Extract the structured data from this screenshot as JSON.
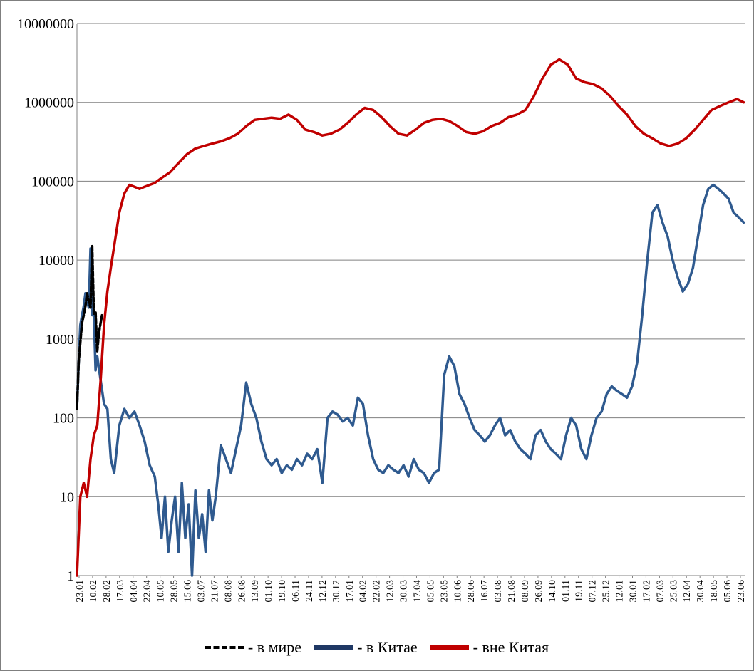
{
  "chart_data": {
    "type": "line",
    "yscale": "log",
    "ylim": [
      1,
      10000000
    ],
    "y_ticks": [
      "1",
      "10",
      "100",
      "1000",
      "10000",
      "100000",
      "1000000",
      "10000000"
    ],
    "x_ticks": [
      "23.01",
      "10.02",
      "28.02",
      "17.03",
      "04.04",
      "22.04",
      "10.05",
      "28.05",
      "15.06",
      "03.07",
      "21.07",
      "08.08",
      "26.08",
      "13.09",
      "01.10",
      "19.10",
      "06.11",
      "24.11",
      "12.12",
      "30.12",
      "17.01",
      "04.02",
      "22.02",
      "12.03",
      "30.03",
      "17.04",
      "05.05",
      "23.05",
      "10.06",
      "28.06",
      "16.07",
      "03.08",
      "21.08",
      "08.09",
      "26.09",
      "14.10",
      "01.11",
      "19.11",
      "07.12",
      "25.12",
      "12.01",
      "30.01",
      "17.02",
      "07.03",
      "25.03",
      "12.04",
      "30.04",
      "18.05",
      "05.06",
      "23.06"
    ],
    "grid": true,
    "legend_position": "bottom",
    "series": [
      {
        "name": "- в мире",
        "color": "#000000",
        "style": "dashed",
        "points": [
          [
            0,
            130
          ],
          [
            1,
            500
          ],
          [
            2,
            900
          ],
          [
            3,
            1600
          ],
          [
            4,
            2000
          ],
          [
            5,
            2600
          ],
          [
            6,
            3800
          ],
          [
            7,
            3000
          ],
          [
            8,
            2500
          ],
          [
            9,
            15000
          ],
          [
            10,
            2100
          ],
          [
            11,
            2200
          ],
          [
            12,
            700
          ],
          [
            13,
            1200
          ],
          [
            14,
            1600
          ],
          [
            15,
            2100
          ]
        ]
      },
      {
        "name": "-  в Китае",
        "color": "#2f5a8f",
        "style": "solid",
        "points": [
          [
            0,
            130
          ],
          [
            1,
            500
          ],
          [
            2,
            1500
          ],
          [
            3,
            2000
          ],
          [
            4,
            2600
          ],
          [
            5,
            3800
          ],
          [
            6,
            3000
          ],
          [
            7,
            2500
          ],
          [
            8,
            14000
          ],
          [
            9,
            2000
          ],
          [
            10,
            2000
          ],
          [
            11,
            400
          ],
          [
            12,
            600
          ],
          [
            14,
            300
          ],
          [
            16,
            150
          ],
          [
            18,
            130
          ],
          [
            20,
            30
          ],
          [
            22,
            20
          ],
          [
            25,
            80
          ],
          [
            28,
            130
          ],
          [
            31,
            100
          ],
          [
            34,
            120
          ],
          [
            37,
            80
          ],
          [
            40,
            50
          ],
          [
            43,
            25
          ],
          [
            46,
            18
          ],
          [
            48,
            8
          ],
          [
            50,
            3
          ],
          [
            52,
            10
          ],
          [
            54,
            2
          ],
          [
            56,
            5
          ],
          [
            58,
            10
          ],
          [
            60,
            2
          ],
          [
            62,
            15
          ],
          [
            64,
            3
          ],
          [
            66,
            8
          ],
          [
            68,
            1
          ],
          [
            70,
            12
          ],
          [
            72,
            3
          ],
          [
            74,
            6
          ],
          [
            76,
            2
          ],
          [
            78,
            12
          ],
          [
            80,
            5
          ],
          [
            82,
            10
          ],
          [
            85,
            45
          ],
          [
            88,
            30
          ],
          [
            91,
            20
          ],
          [
            94,
            40
          ],
          [
            97,
            80
          ],
          [
            100,
            280
          ],
          [
            103,
            150
          ],
          [
            106,
            100
          ],
          [
            109,
            50
          ],
          [
            112,
            30
          ],
          [
            115,
            25
          ],
          [
            118,
            30
          ],
          [
            121,
            20
          ],
          [
            124,
            25
          ],
          [
            127,
            22
          ],
          [
            130,
            30
          ],
          [
            133,
            25
          ],
          [
            136,
            35
          ],
          [
            139,
            30
          ],
          [
            142,
            40
          ],
          [
            145,
            15
          ],
          [
            148,
            100
          ],
          [
            151,
            120
          ],
          [
            154,
            110
          ],
          [
            157,
            90
          ],
          [
            160,
            100
          ],
          [
            163,
            80
          ],
          [
            166,
            180
          ],
          [
            169,
            150
          ],
          [
            172,
            60
          ],
          [
            175,
            30
          ],
          [
            178,
            22
          ],
          [
            181,
            20
          ],
          [
            184,
            25
          ],
          [
            187,
            22
          ],
          [
            190,
            20
          ],
          [
            193,
            25
          ],
          [
            196,
            18
          ],
          [
            199,
            30
          ],
          [
            202,
            22
          ],
          [
            205,
            20
          ],
          [
            208,
            15
          ],
          [
            211,
            20
          ],
          [
            214,
            22
          ],
          [
            217,
            350
          ],
          [
            220,
            600
          ],
          [
            223,
            450
          ],
          [
            226,
            200
          ],
          [
            229,
            150
          ],
          [
            232,
            100
          ],
          [
            235,
            70
          ],
          [
            238,
            60
          ],
          [
            241,
            50
          ],
          [
            244,
            60
          ],
          [
            247,
            80
          ],
          [
            250,
            100
          ],
          [
            253,
            60
          ],
          [
            256,
            70
          ],
          [
            259,
            50
          ],
          [
            262,
            40
          ],
          [
            265,
            35
          ],
          [
            268,
            30
          ],
          [
            271,
            60
          ],
          [
            274,
            70
          ],
          [
            277,
            50
          ],
          [
            280,
            40
          ],
          [
            283,
            35
          ],
          [
            286,
            30
          ],
          [
            289,
            60
          ],
          [
            292,
            100
          ],
          [
            295,
            80
          ],
          [
            298,
            40
          ],
          [
            301,
            30
          ],
          [
            304,
            60
          ],
          [
            307,
            100
          ],
          [
            310,
            120
          ],
          [
            313,
            200
          ],
          [
            316,
            250
          ],
          [
            319,
            220
          ],
          [
            322,
            200
          ],
          [
            325,
            180
          ],
          [
            328,
            250
          ],
          [
            331,
            500
          ],
          [
            334,
            2000
          ],
          [
            337,
            10000
          ],
          [
            340,
            40000
          ],
          [
            343,
            50000
          ],
          [
            346,
            30000
          ],
          [
            349,
            20000
          ],
          [
            352,
            10000
          ],
          [
            355,
            6000
          ],
          [
            358,
            4000
          ],
          [
            361,
            5000
          ],
          [
            364,
            8000
          ],
          [
            367,
            20000
          ],
          [
            370,
            50000
          ],
          [
            373,
            80000
          ],
          [
            376,
            90000
          ],
          [
            379,
            80000
          ],
          [
            382,
            70000
          ],
          [
            385,
            60000
          ],
          [
            388,
            40000
          ],
          [
            391,
            35000
          ],
          [
            394,
            30000
          ]
        ]
      },
      {
        "name": "- вне Китая",
        "color": "#c00000",
        "style": "solid",
        "points": [
          [
            0,
            1
          ],
          [
            2,
            10
          ],
          [
            4,
            15
          ],
          [
            6,
            10
          ],
          [
            8,
            30
          ],
          [
            10,
            60
          ],
          [
            12,
            80
          ],
          [
            14,
            300
          ],
          [
            16,
            1500
          ],
          [
            18,
            4000
          ],
          [
            20,
            8000
          ],
          [
            22,
            15000
          ],
          [
            25,
            40000
          ],
          [
            28,
            70000
          ],
          [
            31,
            90000
          ],
          [
            34,
            85000
          ],
          [
            37,
            80000
          ],
          [
            40,
            85000
          ],
          [
            43,
            90000
          ],
          [
            46,
            95000
          ],
          [
            50,
            110000
          ],
          [
            55,
            130000
          ],
          [
            60,
            170000
          ],
          [
            65,
            220000
          ],
          [
            70,
            260000
          ],
          [
            75,
            280000
          ],
          [
            80,
            300000
          ],
          [
            85,
            320000
          ],
          [
            90,
            350000
          ],
          [
            95,
            400000
          ],
          [
            100,
            500000
          ],
          [
            105,
            600000
          ],
          [
            110,
            620000
          ],
          [
            115,
            640000
          ],
          [
            120,
            620000
          ],
          [
            125,
            700000
          ],
          [
            130,
            600000
          ],
          [
            135,
            450000
          ],
          [
            140,
            420000
          ],
          [
            145,
            380000
          ],
          [
            150,
            400000
          ],
          [
            155,
            450000
          ],
          [
            160,
            550000
          ],
          [
            165,
            700000
          ],
          [
            170,
            850000
          ],
          [
            175,
            800000
          ],
          [
            180,
            650000
          ],
          [
            185,
            500000
          ],
          [
            190,
            400000
          ],
          [
            195,
            380000
          ],
          [
            200,
            450000
          ],
          [
            205,
            550000
          ],
          [
            210,
            600000
          ],
          [
            215,
            620000
          ],
          [
            220,
            580000
          ],
          [
            225,
            500000
          ],
          [
            230,
            420000
          ],
          [
            235,
            400000
          ],
          [
            240,
            430000
          ],
          [
            245,
            500000
          ],
          [
            250,
            550000
          ],
          [
            255,
            650000
          ],
          [
            260,
            700000
          ],
          [
            265,
            800000
          ],
          [
            270,
            1200000
          ],
          [
            275,
            2000000
          ],
          [
            280,
            3000000
          ],
          [
            285,
            3500000
          ],
          [
            290,
            3000000
          ],
          [
            295,
            2000000
          ],
          [
            300,
            1800000
          ],
          [
            305,
            1700000
          ],
          [
            310,
            1500000
          ],
          [
            315,
            1200000
          ],
          [
            320,
            900000
          ],
          [
            325,
            700000
          ],
          [
            330,
            500000
          ],
          [
            335,
            400000
          ],
          [
            340,
            350000
          ],
          [
            345,
            300000
          ],
          [
            350,
            280000
          ],
          [
            355,
            300000
          ],
          [
            360,
            350000
          ],
          [
            365,
            450000
          ],
          [
            370,
            600000
          ],
          [
            375,
            800000
          ],
          [
            380,
            900000
          ],
          [
            385,
            1000000
          ],
          [
            390,
            1100000
          ],
          [
            394,
            1000000
          ]
        ]
      }
    ]
  },
  "legend": [
    {
      "label": "- в мире"
    },
    {
      "label": "-  в Китае"
    },
    {
      "label": "- вне Китая"
    }
  ]
}
